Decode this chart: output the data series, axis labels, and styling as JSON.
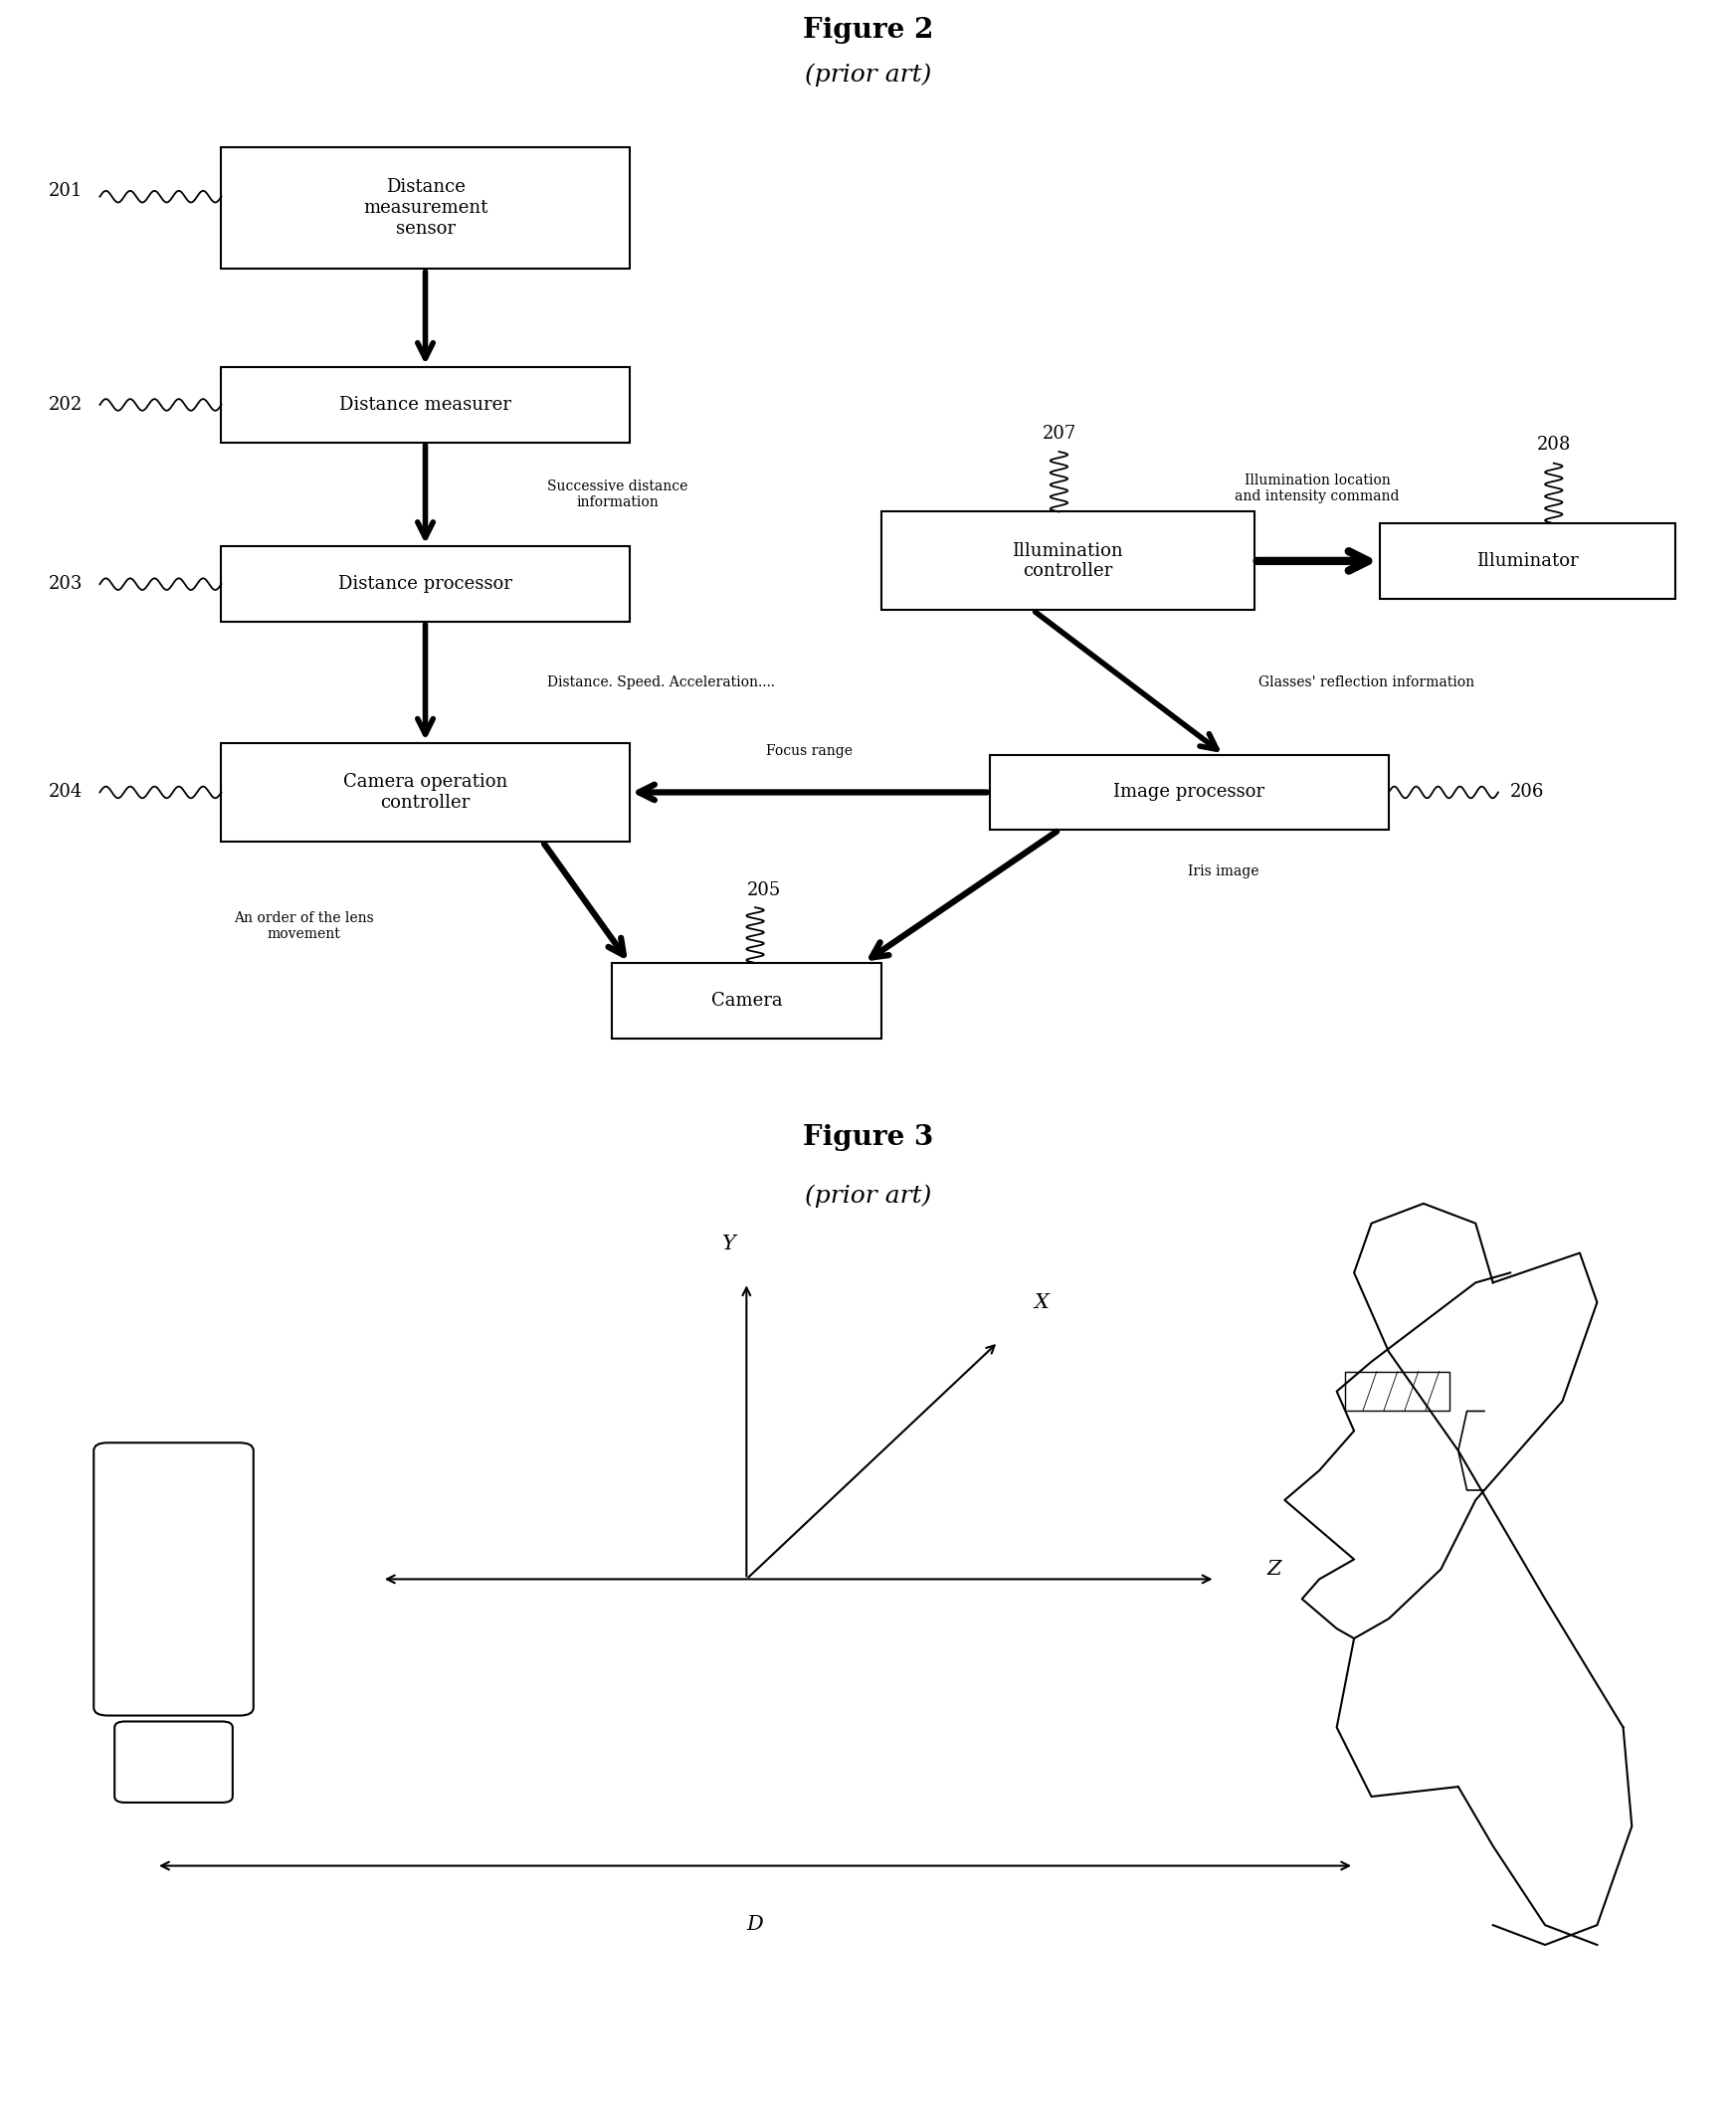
{
  "fig2_title": "Figure 2",
  "fig2_subtitle": "(prior art)",
  "fig3_title": "Figure 3",
  "fig3_subtitle": "(prior art)",
  "bg_color": "#ffffff"
}
